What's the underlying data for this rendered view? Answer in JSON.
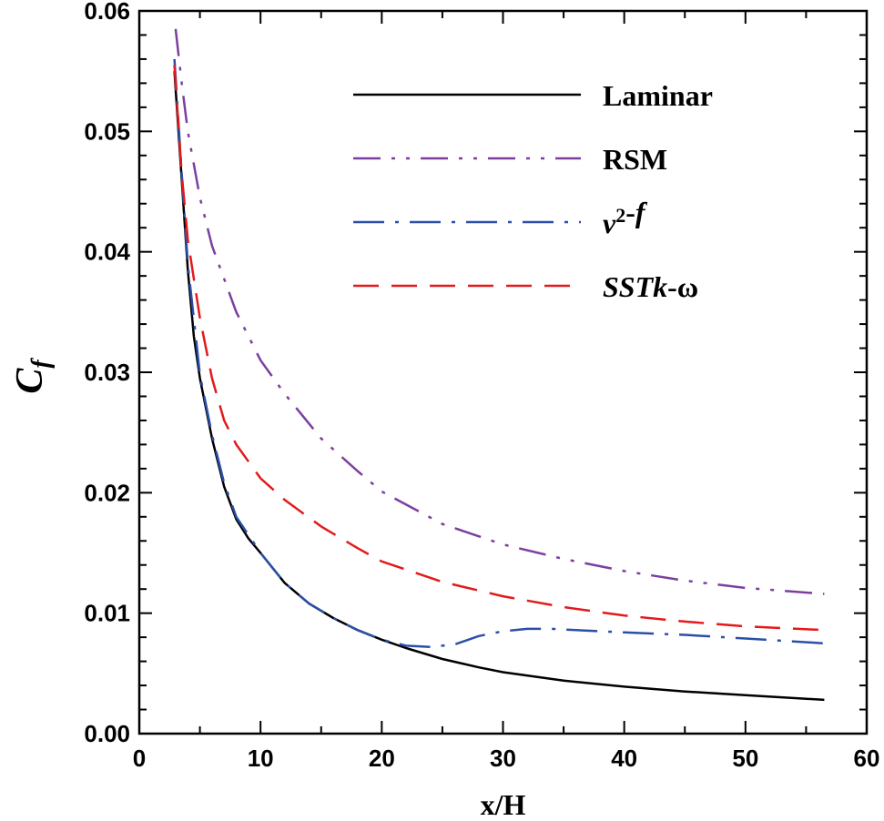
{
  "chart_data": {
    "type": "line",
    "title": "",
    "xlabel": "x/H",
    "ylabel_main": "C",
    "ylabel_sub": "f",
    "xlim": [
      0,
      60
    ],
    "ylim": [
      0,
      0.06
    ],
    "grid": false,
    "legend_position": "top-right",
    "x_ticks": [
      0,
      10,
      20,
      30,
      40,
      50,
      60
    ],
    "x_tick_labels": [
      "0",
      "10",
      "20",
      "30",
      "40",
      "50",
      "60"
    ],
    "y_ticks": [
      0,
      0.01,
      0.02,
      0.03,
      0.04,
      0.05,
      0.06
    ],
    "y_tick_labels": [
      "0.00",
      "0.01",
      "0.02",
      "0.03",
      "0.04",
      "0.05",
      "0.06"
    ],
    "series": [
      {
        "name": "Laminar",
        "legend_parts": [
          {
            "text": "Laminar",
            "style": "normal"
          }
        ],
        "color": "#000000",
        "dash": "solid",
        "x": [
          2.9,
          3.5,
          4.0,
          4.5,
          5,
          6,
          7,
          8,
          9,
          10,
          12,
          14,
          16,
          18,
          20,
          22,
          25,
          28,
          30,
          35,
          40,
          45,
          50,
          56.5
        ],
        "y": [
          0.055,
          0.046,
          0.0385,
          0.033,
          0.0295,
          0.0245,
          0.0205,
          0.0178,
          0.0162,
          0.015,
          0.0125,
          0.0108,
          0.0096,
          0.0086,
          0.0078,
          0.0071,
          0.0062,
          0.0055,
          0.0051,
          0.0044,
          0.0039,
          0.0035,
          0.0032,
          0.0028
        ]
      },
      {
        "name": "RSM",
        "legend_parts": [
          {
            "text": "RSM",
            "style": "normal"
          }
        ],
        "color": "#7b3fa0",
        "dash": "dashdotdot",
        "x": [
          3.0,
          3.5,
          4.0,
          5,
          6,
          8,
          10,
          12,
          15,
          18,
          20,
          25,
          30,
          35,
          40,
          45,
          50,
          56.5
        ],
        "y": [
          0.0585,
          0.054,
          0.05,
          0.0445,
          0.0405,
          0.035,
          0.031,
          0.0282,
          0.0245,
          0.0218,
          0.0201,
          0.0174,
          0.0157,
          0.0145,
          0.0135,
          0.0127,
          0.0121,
          0.0116
        ]
      },
      {
        "name": "v2-f",
        "legend_parts": [
          {
            "text": "v",
            "style": "italic"
          },
          {
            "text": "2",
            "style": "superscript"
          },
          {
            "text": "-",
            "style": "normal"
          },
          {
            "text": "f",
            "style": "italic"
          }
        ],
        "color": "#2b4fa8",
        "dash": "dashdot",
        "x": [
          2.9,
          3.5,
          4.0,
          5,
          6,
          7,
          8,
          10,
          12,
          14,
          16,
          18,
          20,
          22,
          24,
          26,
          28,
          30,
          32,
          34,
          36,
          40,
          45,
          50,
          56.5
        ],
        "y": [
          0.056,
          0.0465,
          0.039,
          0.0298,
          0.0248,
          0.0208,
          0.018,
          0.015,
          0.0125,
          0.0108,
          0.0096,
          0.0086,
          0.0078,
          0.0073,
          0.0072,
          0.0074,
          0.0081,
          0.0085,
          0.0087,
          0.0087,
          0.0086,
          0.0084,
          0.0082,
          0.0079,
          0.0075
        ]
      },
      {
        "name": "SSTk-ω",
        "legend_parts": [
          {
            "text": "SSTk",
            "style": "italic"
          },
          {
            "text": "-ω",
            "style": "normal"
          }
        ],
        "color": "#e31a1c",
        "dash": "dash",
        "x": [
          2.9,
          3.5,
          4.0,
          5,
          6,
          7,
          8,
          10,
          12,
          15,
          18,
          20,
          25,
          30,
          35,
          40,
          45,
          50,
          56.5
        ],
        "y": [
          0.0555,
          0.0465,
          0.041,
          0.0345,
          0.0295,
          0.026,
          0.024,
          0.0212,
          0.0194,
          0.0172,
          0.0154,
          0.0143,
          0.0126,
          0.0114,
          0.0105,
          0.0098,
          0.0093,
          0.0089,
          0.0086
        ]
      }
    ]
  }
}
